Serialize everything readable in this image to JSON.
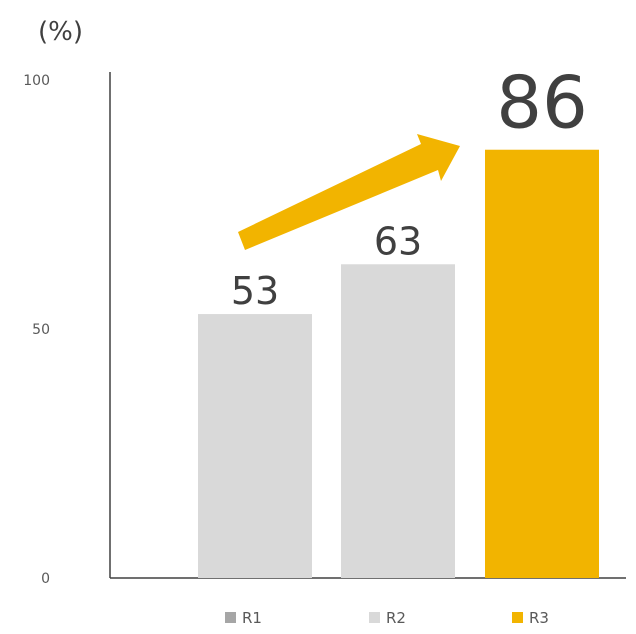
{
  "chart_data": {
    "type": "bar",
    "unit_label": "(%)",
    "categories": [
      "R1",
      "R2",
      "R3"
    ],
    "values": [
      53,
      63,
      86
    ],
    "value_labels": [
      "53",
      "63",
      "86"
    ],
    "colors": [
      "#d9d9d9",
      "#d9d9d9",
      "#f2b400"
    ],
    "legend_colors": [
      "#a6a6a6",
      "#d9d9d9",
      "#f2b400"
    ],
    "ylim": [
      0,
      100
    ],
    "yticks": [
      0,
      50,
      100
    ],
    "ytick_labels": [
      "0",
      "50",
      "100"
    ],
    "legend_position": "bottom",
    "grid": false,
    "annotation": {
      "type": "arrow",
      "color": "#f2b400",
      "direction": "upward from R1 to R3"
    }
  }
}
